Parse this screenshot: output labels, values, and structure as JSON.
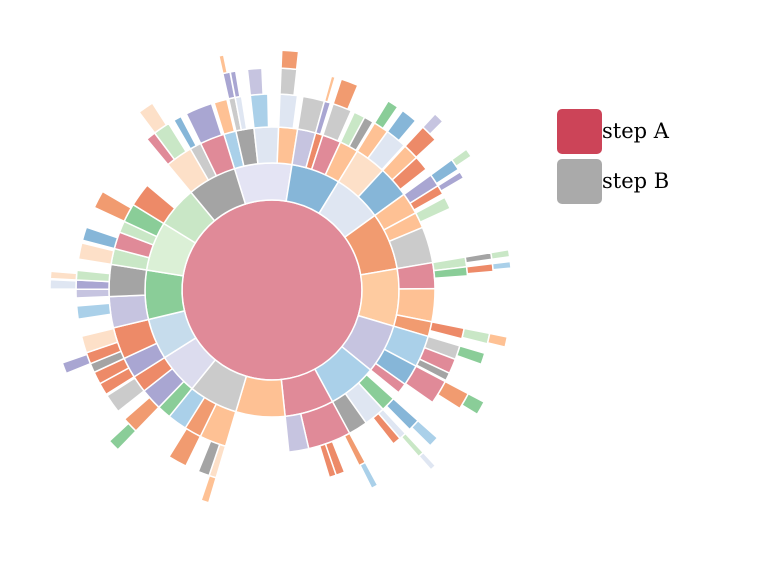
{
  "chart_data": {
    "type": "sunburst",
    "title": "",
    "center": {
      "name": "",
      "color": "#e08a98"
    },
    "legend": [
      {
        "label": "step A",
        "color": "#cc4458"
      },
      {
        "label": "step B",
        "color": "#aaaaaa"
      }
    ],
    "levels": 5,
    "palette": [
      "#e08a98",
      "#86b6d8",
      "#f19b70",
      "#8acd98",
      "#fec194",
      "#c6c4e0",
      "#cbcbcb",
      "#dfe6f2",
      "#a4a4a4",
      "#aad0e9",
      "#fde0c8",
      "#c9e7c6",
      "#a9a6d2",
      "#ed8a68"
    ],
    "ring1": [
      {
        "value": 7,
        "color": "#e4e4f4"
      },
      {
        "value": 6,
        "color": "#86b6d8"
      },
      {
        "value": 6,
        "color": "#dfe6f2"
      },
      {
        "value": 7,
        "color": "#f19b70"
      },
      {
        "value": 7,
        "color": "#fecba0"
      },
      {
        "value": 6,
        "color": "#c6c4e0"
      },
      {
        "value": 6,
        "color": "#aad0e9"
      },
      {
        "value": 6,
        "color": "#e08a98"
      },
      {
        "value": 6,
        "color": "#fec194"
      },
      {
        "value": 6,
        "color": "#cbcbcb"
      },
      {
        "value": 5,
        "color": "#dcdcee"
      },
      {
        "value": 5,
        "color": "#c6dcec"
      },
      {
        "value": 6,
        "color": "#8acd98"
      },
      {
        "value": 6,
        "color": "#dbf0d6"
      },
      {
        "value": 5,
        "color": "#c9e7c6"
      },
      {
        "value": 6,
        "color": "#a4a4a4"
      }
    ]
  }
}
